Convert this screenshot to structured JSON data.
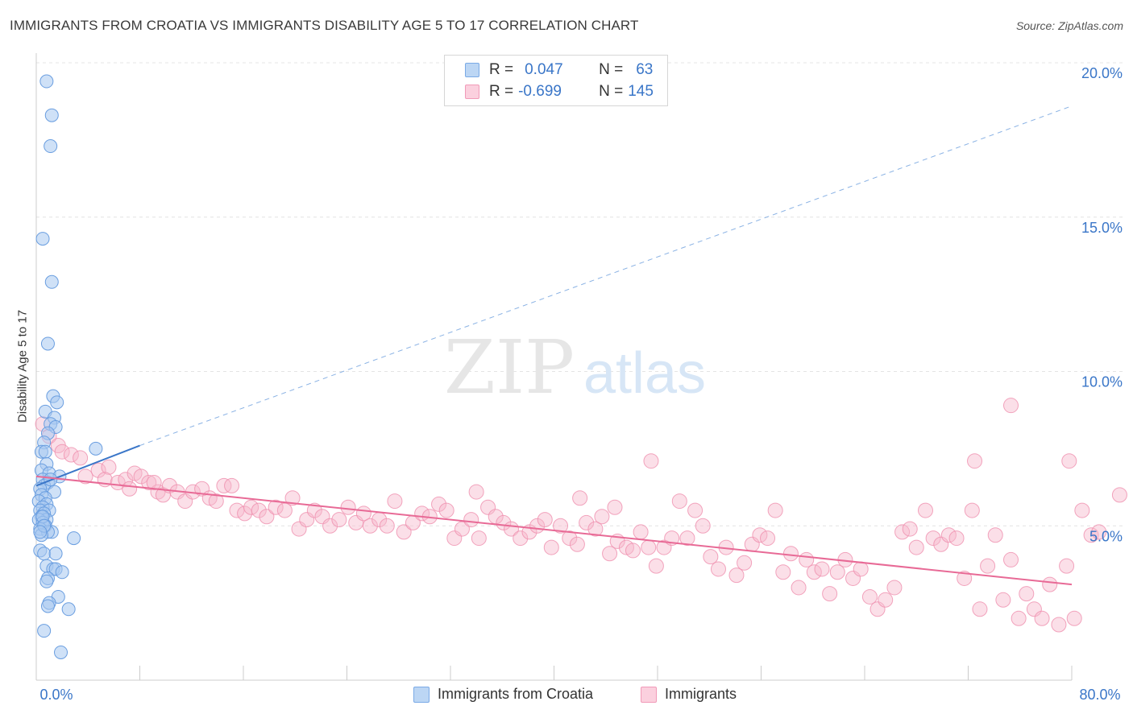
{
  "header": {
    "title": "IMMIGRANTS FROM CROATIA VS IMMIGRANTS DISABILITY AGE 5 TO 17 CORRELATION CHART",
    "source": "Source: ZipAtlas.com"
  },
  "watermark": {
    "zip": "ZIP",
    "atlas": "atlas"
  },
  "legend_top": {
    "rows": [
      {
        "r_label": "R =",
        "r_value": "0.047",
        "n_label": "N =",
        "n_value": "63"
      },
      {
        "r_label": "R =",
        "r_value": "-0.699",
        "n_label": "N =",
        "n_value": "145"
      }
    ]
  },
  "legend_bottom": {
    "items": [
      {
        "label": "Immigrants from Croatia"
      },
      {
        "label": "Immigrants"
      }
    ]
  },
  "colors": {
    "blue_fill": "#a8c8f0",
    "blue_stroke": "#6a9ee0",
    "blue_line": "#3a76c8",
    "pink_fill": "#f7b8cc",
    "pink_stroke": "#ef8fae",
    "pink_line": "#e86a96",
    "axis_text": "#3a76c8",
    "grid": "#e4e4e4"
  },
  "chart_data": {
    "type": "scatter",
    "title": "IMMIGRANTS FROM CROATIA VS IMMIGRANTS DISABILITY AGE 5 TO 17 CORRELATION CHART",
    "xlabel": "",
    "ylabel": "Disability Age 5 to 17",
    "xlim": [
      0,
      80
    ],
    "ylim": [
      0,
      20
    ],
    "x_ticks": [
      "0.0%",
      "80.0%"
    ],
    "y_ticks": [
      {
        "value": 5,
        "label": "5.0%"
      },
      {
        "value": 10,
        "label": "10.0%"
      },
      {
        "value": 15,
        "label": "15.0%"
      },
      {
        "value": 20,
        "label": "20.0%"
      }
    ],
    "grid": true,
    "legend_position": "top-center",
    "series": [
      {
        "name": "Immigrants from Croatia",
        "color": "#a8c8f0",
        "trend": {
          "x": [
            0,
            8
          ],
          "y": [
            6.3,
            7.6
          ],
          "extended_to": [
            80,
            18.6
          ],
          "style": "solid-then-dashed"
        },
        "points": [
          [
            0.8,
            19.4
          ],
          [
            1.2,
            18.3
          ],
          [
            1.1,
            17.3
          ],
          [
            0.5,
            14.3
          ],
          [
            1.2,
            12.9
          ],
          [
            0.9,
            10.9
          ],
          [
            1.3,
            9.2
          ],
          [
            1.6,
            9.0
          ],
          [
            0.7,
            8.7
          ],
          [
            1.4,
            8.5
          ],
          [
            1.1,
            8.3
          ],
          [
            1.5,
            8.2
          ],
          [
            0.9,
            8.0
          ],
          [
            0.6,
            7.7
          ],
          [
            4.6,
            7.5
          ],
          [
            0.4,
            7.4
          ],
          [
            0.7,
            7.4
          ],
          [
            0.8,
            7.0
          ],
          [
            0.4,
            6.8
          ],
          [
            1.0,
            6.7
          ],
          [
            1.8,
            6.6
          ],
          [
            0.5,
            6.5
          ],
          [
            0.9,
            6.4
          ],
          [
            0.6,
            6.3
          ],
          [
            0.3,
            6.2
          ],
          [
            1.4,
            6.1
          ],
          [
            0.4,
            6.0
          ],
          [
            0.7,
            5.9
          ],
          [
            0.2,
            5.8
          ],
          [
            0.8,
            5.7
          ],
          [
            0.5,
            5.6
          ],
          [
            0.3,
            5.5
          ],
          [
            1.0,
            5.5
          ],
          [
            0.6,
            5.4
          ],
          [
            0.4,
            5.3
          ],
          [
            0.8,
            5.2
          ],
          [
            0.2,
            5.2
          ],
          [
            0.5,
            5.1
          ],
          [
            0.7,
            5.0
          ],
          [
            0.3,
            4.9
          ],
          [
            1.2,
            4.8
          ],
          [
            0.9,
            4.8
          ],
          [
            0.4,
            4.7
          ],
          [
            2.9,
            4.6
          ],
          [
            0.3,
            4.2
          ],
          [
            0.6,
            4.1
          ],
          [
            1.5,
            4.1
          ],
          [
            0.8,
            3.7
          ],
          [
            1.3,
            3.6
          ],
          [
            1.5,
            3.6
          ],
          [
            2.0,
            3.5
          ],
          [
            0.9,
            3.3
          ],
          [
            0.8,
            3.2
          ],
          [
            1.7,
            2.7
          ],
          [
            1.0,
            2.5
          ],
          [
            0.9,
            2.4
          ],
          [
            2.5,
            2.3
          ],
          [
            0.6,
            1.6
          ],
          [
            1.9,
            0.9
          ],
          [
            0.5,
            5.3
          ],
          [
            0.6,
            5.0
          ],
          [
            0.3,
            4.8
          ],
          [
            1.1,
            6.5
          ]
        ]
      },
      {
        "name": "Immigrants",
        "color": "#f7b8cc",
        "trend": {
          "x": [
            0,
            80
          ],
          "y": [
            6.6,
            3.1
          ]
        },
        "points": [
          [
            0.5,
            8.3
          ],
          [
            1.0,
            7.9
          ],
          [
            1.7,
            7.6
          ],
          [
            2.0,
            7.4
          ],
          [
            2.7,
            7.3
          ],
          [
            3.4,
            7.2
          ],
          [
            4.8,
            6.8
          ],
          [
            5.6,
            6.9
          ],
          [
            5.3,
            6.5
          ],
          [
            6.3,
            6.4
          ],
          [
            6.9,
            6.5
          ],
          [
            7.6,
            6.7
          ],
          [
            8.1,
            6.6
          ],
          [
            8.7,
            6.4
          ],
          [
            9.4,
            6.1
          ],
          [
            9.8,
            6.0
          ],
          [
            10.3,
            6.3
          ],
          [
            10.9,
            6.1
          ],
          [
            11.5,
            5.8
          ],
          [
            12.1,
            6.1
          ],
          [
            12.8,
            6.2
          ],
          [
            13.4,
            5.9
          ],
          [
            13.9,
            5.8
          ],
          [
            14.5,
            6.3
          ],
          [
            15.5,
            5.5
          ],
          [
            16.1,
            5.4
          ],
          [
            16.6,
            5.6
          ],
          [
            17.2,
            5.5
          ],
          [
            17.8,
            5.3
          ],
          [
            18.5,
            5.6
          ],
          [
            19.2,
            5.5
          ],
          [
            19.8,
            5.9
          ],
          [
            20.3,
            4.9
          ],
          [
            20.9,
            5.2
          ],
          [
            21.5,
            5.5
          ],
          [
            22.1,
            5.3
          ],
          [
            22.7,
            5.0
          ],
          [
            23.4,
            5.2
          ],
          [
            24.1,
            5.6
          ],
          [
            24.7,
            5.1
          ],
          [
            25.3,
            5.4
          ],
          [
            25.8,
            5.0
          ],
          [
            26.5,
            5.2
          ],
          [
            27.1,
            5.0
          ],
          [
            27.7,
            5.8
          ],
          [
            28.4,
            4.8
          ],
          [
            29.1,
            5.1
          ],
          [
            29.8,
            5.4
          ],
          [
            30.4,
            5.3
          ],
          [
            31.1,
            5.7
          ],
          [
            31.7,
            5.5
          ],
          [
            32.3,
            4.6
          ],
          [
            32.9,
            4.9
          ],
          [
            33.6,
            5.2
          ],
          [
            34.2,
            4.6
          ],
          [
            34.9,
            5.6
          ],
          [
            35.5,
            5.3
          ],
          [
            36.1,
            5.1
          ],
          [
            36.7,
            4.9
          ],
          [
            37.4,
            4.6
          ],
          [
            38.1,
            4.8
          ],
          [
            38.7,
            5.0
          ],
          [
            39.3,
            5.2
          ],
          [
            39.8,
            4.3
          ],
          [
            40.5,
            5.0
          ],
          [
            41.2,
            4.6
          ],
          [
            41.8,
            4.4
          ],
          [
            42.5,
            5.1
          ],
          [
            43.2,
            4.9
          ],
          [
            43.7,
            5.3
          ],
          [
            44.3,
            4.1
          ],
          [
            44.9,
            4.5
          ],
          [
            45.6,
            4.3
          ],
          [
            46.1,
            4.2
          ],
          [
            46.7,
            4.8
          ],
          [
            47.3,
            4.3
          ],
          [
            47.9,
            3.7
          ],
          [
            48.5,
            4.3
          ],
          [
            49.1,
            4.6
          ],
          [
            49.7,
            5.8
          ],
          [
            50.3,
            4.6
          ],
          [
            50.9,
            5.5
          ],
          [
            51.5,
            5.0
          ],
          [
            52.1,
            4.0
          ],
          [
            52.7,
            3.6
          ],
          [
            53.3,
            4.3
          ],
          [
            54.1,
            3.4
          ],
          [
            54.7,
            3.8
          ],
          [
            55.3,
            4.4
          ],
          [
            55.9,
            4.7
          ],
          [
            56.5,
            4.6
          ],
          [
            57.1,
            5.5
          ],
          [
            57.7,
            3.5
          ],
          [
            58.3,
            4.1
          ],
          [
            58.9,
            3.0
          ],
          [
            59.5,
            3.9
          ],
          [
            60.1,
            3.5
          ],
          [
            60.7,
            3.6
          ],
          [
            61.3,
            2.8
          ],
          [
            61.9,
            3.5
          ],
          [
            62.5,
            3.9
          ],
          [
            63.1,
            3.3
          ],
          [
            63.7,
            3.6
          ],
          [
            64.4,
            2.7
          ],
          [
            65.0,
            2.3
          ],
          [
            65.6,
            2.6
          ],
          [
            66.3,
            3.0
          ],
          [
            66.9,
            4.8
          ],
          [
            67.5,
            4.9
          ],
          [
            68.0,
            4.3
          ],
          [
            68.7,
            5.5
          ],
          [
            69.3,
            4.6
          ],
          [
            69.9,
            4.4
          ],
          [
            70.5,
            4.7
          ],
          [
            71.1,
            4.6
          ],
          [
            71.7,
            3.3
          ],
          [
            72.3,
            5.5
          ],
          [
            72.9,
            2.3
          ],
          [
            73.5,
            3.7
          ],
          [
            74.1,
            4.7
          ],
          [
            74.7,
            2.6
          ],
          [
            75.3,
            3.9
          ],
          [
            75.9,
            2.0
          ],
          [
            76.5,
            2.8
          ],
          [
            77.1,
            2.3
          ],
          [
            77.7,
            2.0
          ],
          [
            78.3,
            3.1
          ],
          [
            79.0,
            1.8
          ],
          [
            79.6,
            3.7
          ],
          [
            80.2,
            2.0
          ],
          [
            80.8,
            5.5
          ],
          [
            81.5,
            4.7
          ],
          [
            82.1,
            4.8
          ],
          [
            83.7,
            6.0
          ],
          [
            72.5,
            7.1
          ],
          [
            75.3,
            8.9
          ],
          [
            79.8,
            7.1
          ],
          [
            42.0,
            5.9
          ],
          [
            44.7,
            5.6
          ],
          [
            47.5,
            7.1
          ],
          [
            34.0,
            6.1
          ],
          [
            15.1,
            6.3
          ],
          [
            3.8,
            6.6
          ],
          [
            7.2,
            6.2
          ],
          [
            9.1,
            6.4
          ]
        ]
      }
    ]
  }
}
